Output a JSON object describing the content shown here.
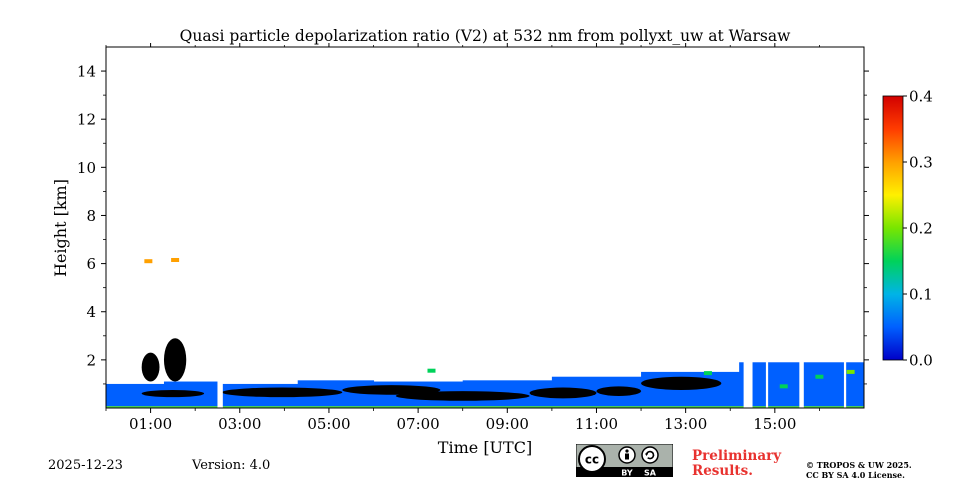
{
  "chart_data": {
    "type": "heatmap",
    "title": "Quasi particle depolarization ratio (V2) at 532 nm from pollyxt_uw at Warsaw",
    "xlabel": "Time [UTC]",
    "ylabel": "Height [km]",
    "xlim_hours": [
      0.0,
      17.0
    ],
    "ylim_km": [
      0.0,
      15.0
    ],
    "x_ticks": [
      {
        "hour": 1,
        "label": "01:00"
      },
      {
        "hour": 3,
        "label": "03:00"
      },
      {
        "hour": 5,
        "label": "05:00"
      },
      {
        "hour": 7,
        "label": "07:00"
      },
      {
        "hour": 9,
        "label": "09:00"
      },
      {
        "hour": 11,
        "label": "11:00"
      },
      {
        "hour": 13,
        "label": "13:00"
      },
      {
        "hour": 15,
        "label": "15:00"
      }
    ],
    "y_ticks": [
      {
        "km": 2,
        "label": "2"
      },
      {
        "km": 4,
        "label": "4"
      },
      {
        "km": 6,
        "label": "6"
      },
      {
        "km": 8,
        "label": "8"
      },
      {
        "km": 10,
        "label": "10"
      },
      {
        "km": 12,
        "label": "12"
      },
      {
        "km": 14,
        "label": "14"
      }
    ],
    "colorbar": {
      "range": [
        0.0,
        0.4
      ],
      "ticks": [
        {
          "value": 0.0,
          "label": "0.0"
        },
        {
          "value": 0.1,
          "label": "0.1"
        },
        {
          "value": 0.2,
          "label": "0.2"
        },
        {
          "value": 0.3,
          "label": "0.3"
        },
        {
          "value": 0.4,
          "label": "0.4"
        }
      ],
      "colormap": [
        "#0000c8",
        "#0060ff",
        "#00b4e6",
        "#00d25a",
        "#78e600",
        "#fff000",
        "#ffa000",
        "#ff3c00",
        "#d20000"
      ]
    },
    "boundary_layer": [
      {
        "t0": 0.0,
        "t1": 1.3,
        "h": 1.0,
        "value": 0.03
      },
      {
        "t0": 1.3,
        "t1": 2.6,
        "h": 1.1,
        "value": 0.03
      },
      {
        "t0": 2.6,
        "t1": 4.3,
        "h": 1.0,
        "value": 0.03
      },
      {
        "t0": 4.3,
        "t1": 6.0,
        "h": 1.15,
        "value": 0.03
      },
      {
        "t0": 6.0,
        "t1": 8.0,
        "h": 1.1,
        "value": 0.03
      },
      {
        "t0": 8.0,
        "t1": 10.0,
        "h": 1.15,
        "value": 0.03
      },
      {
        "t0": 10.0,
        "t1": 12.0,
        "h": 1.3,
        "value": 0.03
      },
      {
        "t0": 12.0,
        "t1": 14.2,
        "h": 1.5,
        "value": 0.03
      },
      {
        "t0": 14.2,
        "t1": 17.0,
        "h": 1.9,
        "value": 0.06
      }
    ],
    "clouds": [
      {
        "t0": 0.8,
        "t1": 2.2,
        "h0": 0.45,
        "h1": 0.75
      },
      {
        "t0": 2.6,
        "t1": 5.3,
        "h0": 0.45,
        "h1": 0.85
      },
      {
        "t0": 5.3,
        "t1": 7.5,
        "h0": 0.55,
        "h1": 0.95
      },
      {
        "t0": 6.5,
        "t1": 9.5,
        "h0": 0.3,
        "h1": 0.7
      },
      {
        "t0": 9.5,
        "t1": 11.0,
        "h0": 0.4,
        "h1": 0.85
      },
      {
        "t0": 11.0,
        "t1": 12.0,
        "h0": 0.5,
        "h1": 0.9
      },
      {
        "t0": 12.0,
        "t1": 13.8,
        "h0": 0.75,
        "h1": 1.3
      },
      {
        "t0": 1.3,
        "t1": 1.8,
        "h0": 1.1,
        "h1": 2.9
      },
      {
        "t0": 0.8,
        "t1": 1.2,
        "h0": 1.1,
        "h1": 2.3
      }
    ],
    "aerosol_patches": [
      {
        "t": 0.95,
        "h": 6.1,
        "value": 0.3
      },
      {
        "t": 1.55,
        "h": 6.15,
        "value": 0.28
      },
      {
        "t": 7.3,
        "h": 1.55,
        "value": 0.14
      },
      {
        "t": 13.5,
        "h": 1.45,
        "value": 0.15
      },
      {
        "t": 15.2,
        "h": 0.9,
        "value": 0.17
      },
      {
        "t": 16.0,
        "h": 1.3,
        "value": 0.13
      },
      {
        "t": 16.7,
        "h": 1.5,
        "value": 0.2
      }
    ],
    "data_gaps": [
      {
        "t0": 2.5,
        "t1": 2.62
      },
      {
        "t0": 14.3,
        "t1": 14.5
      },
      {
        "t0": 14.8,
        "t1": 14.85
      },
      {
        "t0": 15.55,
        "t1": 15.65
      },
      {
        "t0": 16.55,
        "t1": 16.6
      }
    ]
  },
  "footer": {
    "date": "2025-12-23",
    "version": "Version: 4.0",
    "preliminary_line1": "Preliminary",
    "preliminary_line2": "Results.",
    "copyright_line1": "© TROPOS & UW 2025.",
    "copyright_line2": "CC BY SA 4.0 License."
  },
  "license_badge": {
    "cc": "cc",
    "by": "BY",
    "sa": "SA"
  }
}
